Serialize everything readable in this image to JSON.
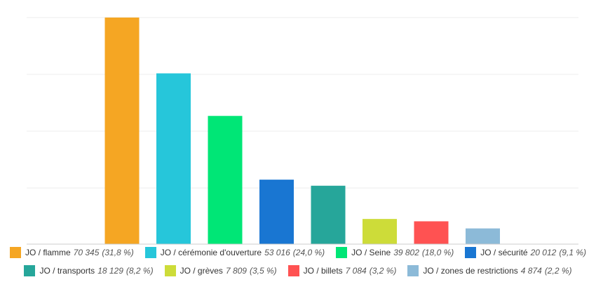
{
  "chart_data": {
    "type": "bar",
    "title": "",
    "xlabel": "",
    "ylabel": "",
    "ylim": [
      0,
      70345
    ],
    "grid": true,
    "legend_position": "bottom",
    "series": [
      {
        "name": "JO / flamme",
        "value": 70345,
        "value_label": "70 345",
        "pct_label": "(31,8 %)",
        "color": "#F5A623"
      },
      {
        "name": "JO / cérémonie d'ouverture",
        "value": 53016,
        "value_label": "53 016",
        "pct_label": "(24,0 %)",
        "color": "#26C6DA"
      },
      {
        "name": "JO / Seine",
        "value": 39802,
        "value_label": "39 802",
        "pct_label": "(18,0 %)",
        "color": "#00E676"
      },
      {
        "name": "JO / sécurité",
        "value": 20012,
        "value_label": "20 012",
        "pct_label": "(9,1 %)",
        "color": "#1976D2"
      },
      {
        "name": "JO / transports",
        "value": 18129,
        "value_label": "18 129",
        "pct_label": "(8,2 %)",
        "color": "#26A69A"
      },
      {
        "name": "JO / grèves",
        "value": 7809,
        "value_label": "7 809",
        "pct_label": "(3,5 %)",
        "color": "#CDDC39"
      },
      {
        "name": "JO / billets",
        "value": 7084,
        "value_label": "7 084",
        "pct_label": "(3,2 %)",
        "color": "#FF5252"
      },
      {
        "name": "JO / zones de restrictions",
        "value": 4874,
        "value_label": "4 874",
        "pct_label": "(2,2 %)",
        "color": "#8CBAD8"
      }
    ]
  }
}
